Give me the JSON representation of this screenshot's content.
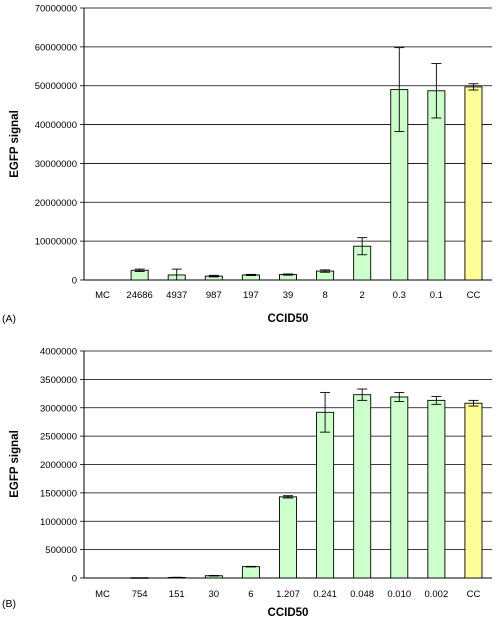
{
  "chart_data": [
    {
      "type": "bar",
      "panel_label": "(A)",
      "xlabel": "CCID50",
      "ylabel": "EGFP signal",
      "ylim": [
        0,
        70000000
      ],
      "yticks": [
        0,
        10000000,
        20000000,
        30000000,
        40000000,
        50000000,
        60000000,
        70000000
      ],
      "grid": "horizontal",
      "categories": [
        "MC",
        "24686",
        "4937",
        "987",
        "197",
        "39",
        "8",
        "2",
        "0.3",
        "0.1",
        "CC"
      ],
      "values": [
        0,
        2500000,
        1300000,
        1000000,
        1300000,
        1400000,
        2300000,
        8700000,
        49000000,
        48700000,
        49700000
      ],
      "errors": [
        0,
        300000,
        1500000,
        200000,
        150000,
        150000,
        300000,
        2200000,
        10800000,
        7000000,
        800000
      ],
      "colors": [
        "#ccffcc",
        "#ccffcc",
        "#ccffcc",
        "#ccffcc",
        "#ccffcc",
        "#ccffcc",
        "#ccffcc",
        "#ccffcc",
        "#ccffcc",
        "#ccffcc",
        "#ffff99"
      ]
    },
    {
      "type": "bar",
      "panel_label": "(B)",
      "xlabel": "CCID50",
      "ylabel": "EGFP signal",
      "ylim": [
        0,
        4000000
      ],
      "yticks": [
        0,
        500000,
        1000000,
        1500000,
        2000000,
        2500000,
        3000000,
        3500000,
        4000000
      ],
      "grid": "horizontal",
      "categories": [
        "MC",
        "754",
        "151",
        "30",
        "6",
        "1.207",
        "0.241",
        "0.048",
        "0.010",
        "0.002",
        "CC"
      ],
      "values": [
        0,
        5000,
        10000,
        40000,
        200000,
        1430000,
        2920000,
        3230000,
        3190000,
        3130000,
        3080000
      ],
      "errors": [
        0,
        0,
        3000,
        5000,
        5000,
        20000,
        350000,
        100000,
        80000,
        70000,
        50000
      ],
      "colors": [
        "#ccffcc",
        "#ccffcc",
        "#ccffcc",
        "#ccffcc",
        "#ccffcc",
        "#ccffcc",
        "#ccffcc",
        "#ccffcc",
        "#ccffcc",
        "#ccffcc",
        "#ffff99"
      ]
    }
  ]
}
